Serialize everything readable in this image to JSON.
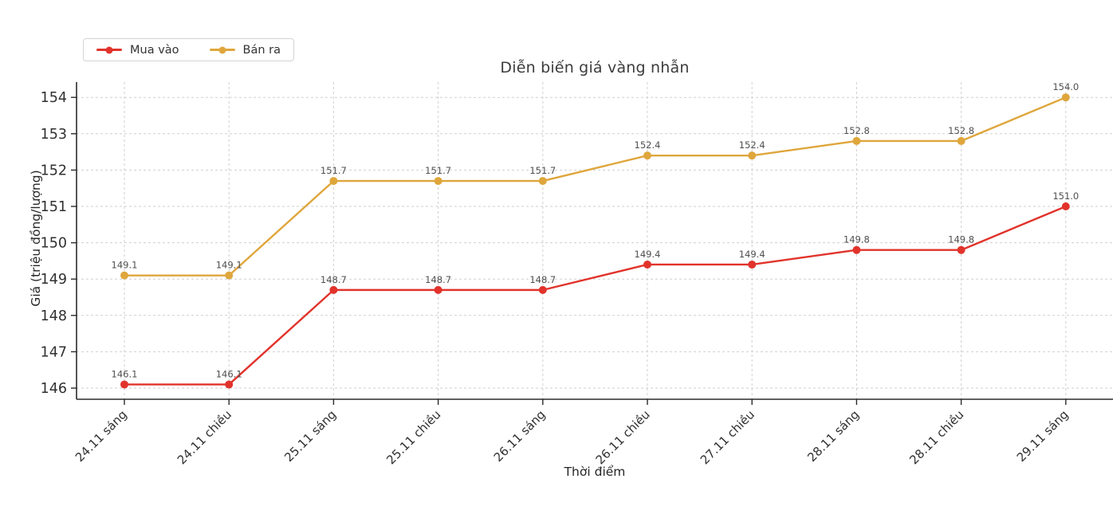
{
  "chart_data": {
    "type": "line",
    "title": "Diễn biến giá vàng nhẫn",
    "xlabel": "Thời điểm",
    "ylabel": "Giá (triệu đồng/lượng)",
    "categories": [
      "24.11 sáng",
      "24.11 chiều",
      "25.11 sáng",
      "25.11 chiều",
      "26.11 sáng",
      "26.11 chiều",
      "27.11 chiều",
      "28.11 sáng",
      "28.11 chiều",
      "29.11 sáng"
    ],
    "series": [
      {
        "name": "Mua vào",
        "color": "#e1332b",
        "values": [
          146.1,
          146.1,
          148.7,
          148.7,
          148.7,
          149.4,
          149.4,
          149.8,
          149.8,
          151.0
        ]
      },
      {
        "name": "Bán ra",
        "color": "#dfa63c",
        "values": [
          149.1,
          149.1,
          151.7,
          151.7,
          151.7,
          152.4,
          152.4,
          152.8,
          152.8,
          154.0
        ]
      }
    ],
    "yticks": [
      146,
      147,
      148,
      149,
      150,
      151,
      152,
      153,
      154
    ],
    "ylim": [
      145.7,
      154.4
    ],
    "grid": true,
    "grid_style": "dashed",
    "legend_position": "top-left",
    "value_labels_decimals": 1,
    "colors": {
      "grid": "#cfcfcf",
      "spine": "#2b2b2b",
      "tick_label": "#303030",
      "point_label": "#4f4f4f",
      "title": "#3c3c3c"
    }
  }
}
